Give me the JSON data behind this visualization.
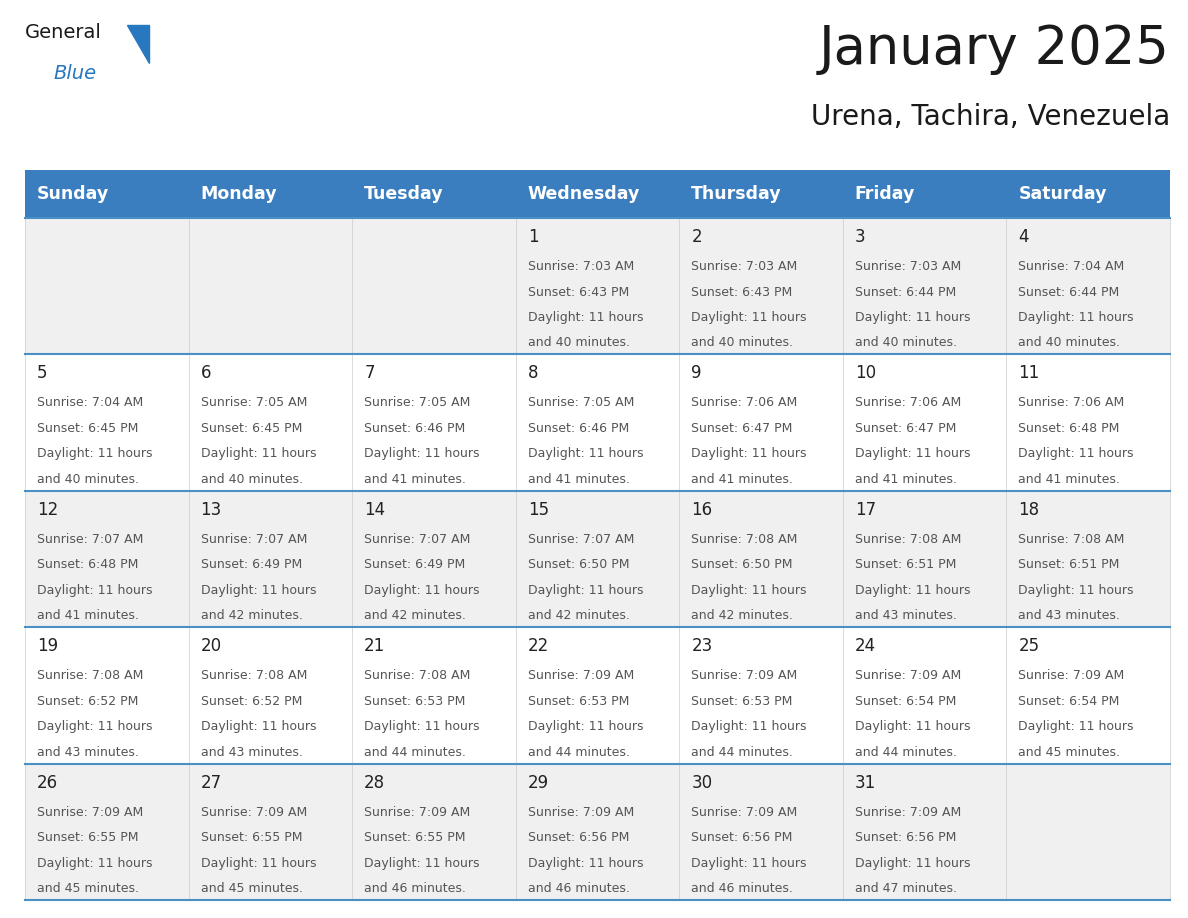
{
  "title": "January 2025",
  "subtitle": "Urena, Tachira, Venezuela",
  "header_bg_color": "#3a7ebf",
  "header_text_color": "#ffffff",
  "days_of_week": [
    "Sunday",
    "Monday",
    "Tuesday",
    "Wednesday",
    "Thursday",
    "Friday",
    "Saturday"
  ],
  "row_bg_colors": [
    "#f0f0f0",
    "#ffffff",
    "#f0f0f0",
    "#ffffff",
    "#f0f0f0"
  ],
  "cell_border_color": "#4a90c4",
  "text_color": "#333333",
  "day_num_color": "#222222",
  "logo_general_color": "#1a1a1a",
  "logo_blue_color": "#2878c0",
  "logo_triangle_color": "#2878c0",
  "calendar_data": [
    [
      null,
      null,
      null,
      {
        "day": 1,
        "sunrise": "7:03 AM",
        "sunset": "6:43 PM",
        "dl_hours": 11,
        "dl_mins": 40
      },
      {
        "day": 2,
        "sunrise": "7:03 AM",
        "sunset": "6:43 PM",
        "dl_hours": 11,
        "dl_mins": 40
      },
      {
        "day": 3,
        "sunrise": "7:03 AM",
        "sunset": "6:44 PM",
        "dl_hours": 11,
        "dl_mins": 40
      },
      {
        "day": 4,
        "sunrise": "7:04 AM",
        "sunset": "6:44 PM",
        "dl_hours": 11,
        "dl_mins": 40
      }
    ],
    [
      {
        "day": 5,
        "sunrise": "7:04 AM",
        "sunset": "6:45 PM",
        "dl_hours": 11,
        "dl_mins": 40
      },
      {
        "day": 6,
        "sunrise": "7:05 AM",
        "sunset": "6:45 PM",
        "dl_hours": 11,
        "dl_mins": 40
      },
      {
        "day": 7,
        "sunrise": "7:05 AM",
        "sunset": "6:46 PM",
        "dl_hours": 11,
        "dl_mins": 41
      },
      {
        "day": 8,
        "sunrise": "7:05 AM",
        "sunset": "6:46 PM",
        "dl_hours": 11,
        "dl_mins": 41
      },
      {
        "day": 9,
        "sunrise": "7:06 AM",
        "sunset": "6:47 PM",
        "dl_hours": 11,
        "dl_mins": 41
      },
      {
        "day": 10,
        "sunrise": "7:06 AM",
        "sunset": "6:47 PM",
        "dl_hours": 11,
        "dl_mins": 41
      },
      {
        "day": 11,
        "sunrise": "7:06 AM",
        "sunset": "6:48 PM",
        "dl_hours": 11,
        "dl_mins": 41
      }
    ],
    [
      {
        "day": 12,
        "sunrise": "7:07 AM",
        "sunset": "6:48 PM",
        "dl_hours": 11,
        "dl_mins": 41
      },
      {
        "day": 13,
        "sunrise": "7:07 AM",
        "sunset": "6:49 PM",
        "dl_hours": 11,
        "dl_mins": 42
      },
      {
        "day": 14,
        "sunrise": "7:07 AM",
        "sunset": "6:49 PM",
        "dl_hours": 11,
        "dl_mins": 42
      },
      {
        "day": 15,
        "sunrise": "7:07 AM",
        "sunset": "6:50 PM",
        "dl_hours": 11,
        "dl_mins": 42
      },
      {
        "day": 16,
        "sunrise": "7:08 AM",
        "sunset": "6:50 PM",
        "dl_hours": 11,
        "dl_mins": 42
      },
      {
        "day": 17,
        "sunrise": "7:08 AM",
        "sunset": "6:51 PM",
        "dl_hours": 11,
        "dl_mins": 43
      },
      {
        "day": 18,
        "sunrise": "7:08 AM",
        "sunset": "6:51 PM",
        "dl_hours": 11,
        "dl_mins": 43
      }
    ],
    [
      {
        "day": 19,
        "sunrise": "7:08 AM",
        "sunset": "6:52 PM",
        "dl_hours": 11,
        "dl_mins": 43
      },
      {
        "day": 20,
        "sunrise": "7:08 AM",
        "sunset": "6:52 PM",
        "dl_hours": 11,
        "dl_mins": 43
      },
      {
        "day": 21,
        "sunrise": "7:08 AM",
        "sunset": "6:53 PM",
        "dl_hours": 11,
        "dl_mins": 44
      },
      {
        "day": 22,
        "sunrise": "7:09 AM",
        "sunset": "6:53 PM",
        "dl_hours": 11,
        "dl_mins": 44
      },
      {
        "day": 23,
        "sunrise": "7:09 AM",
        "sunset": "6:53 PM",
        "dl_hours": 11,
        "dl_mins": 44
      },
      {
        "day": 24,
        "sunrise": "7:09 AM",
        "sunset": "6:54 PM",
        "dl_hours": 11,
        "dl_mins": 44
      },
      {
        "day": 25,
        "sunrise": "7:09 AM",
        "sunset": "6:54 PM",
        "dl_hours": 11,
        "dl_mins": 45
      }
    ],
    [
      {
        "day": 26,
        "sunrise": "7:09 AM",
        "sunset": "6:55 PM",
        "dl_hours": 11,
        "dl_mins": 45
      },
      {
        "day": 27,
        "sunrise": "7:09 AM",
        "sunset": "6:55 PM",
        "dl_hours": 11,
        "dl_mins": 45
      },
      {
        "day": 28,
        "sunrise": "7:09 AM",
        "sunset": "6:55 PM",
        "dl_hours": 11,
        "dl_mins": 46
      },
      {
        "day": 29,
        "sunrise": "7:09 AM",
        "sunset": "6:56 PM",
        "dl_hours": 11,
        "dl_mins": 46
      },
      {
        "day": 30,
        "sunrise": "7:09 AM",
        "sunset": "6:56 PM",
        "dl_hours": 11,
        "dl_mins": 46
      },
      {
        "day": 31,
        "sunrise": "7:09 AM",
        "sunset": "6:56 PM",
        "dl_hours": 11,
        "dl_mins": 47
      },
      null
    ]
  ]
}
